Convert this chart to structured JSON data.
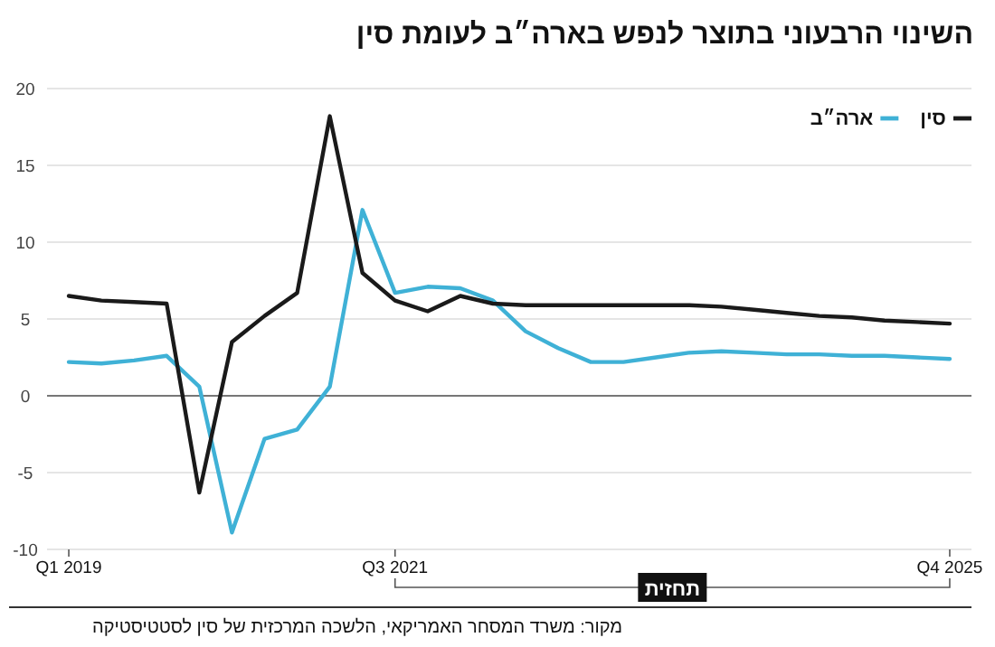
{
  "chart_data": {
    "type": "line",
    "title": "השינוי הרבעוני בתוצר לנפש בארה״ב לעומת סין",
    "x": [
      "2019-01",
      "2019-04",
      "2019-07",
      "2019-10",
      "2020-01",
      "2020-04",
      "2020-07",
      "2020-10",
      "2021-01",
      "2021-04",
      "2021-07",
      "2021-10",
      "2022-01",
      "2022-04",
      "2022-07",
      "2022-10",
      "2023-01",
      "2023-04",
      "2023-07",
      "2023-10",
      "2024-01",
      "2024-04",
      "2024-07",
      "2024-10",
      "2025-01",
      "2025-04",
      "2025-07",
      "2025-10"
    ],
    "series": [
      {
        "name": "סין",
        "color": "#1a1a1a",
        "values": [
          6.5,
          6.2,
          6.1,
          6.0,
          -6.3,
          3.5,
          5.2,
          6.7,
          18.2,
          8.0,
          6.2,
          5.5,
          6.5,
          6.0,
          5.9,
          5.9,
          5.9,
          5.9,
          5.9,
          5.9,
          5.8,
          5.6,
          5.4,
          5.2,
          5.1,
          4.9,
          4.8,
          4.7
        ]
      },
      {
        "name": "ארה״ב",
        "color": "#3fb1d6",
        "values": [
          2.2,
          2.1,
          2.3,
          2.6,
          0.6,
          -8.9,
          -2.8,
          -2.2,
          0.6,
          12.1,
          6.7,
          7.1,
          7.0,
          6.2,
          4.2,
          3.1,
          2.2,
          2.2,
          2.5,
          2.8,
          2.9,
          2.8,
          2.7,
          2.7,
          2.6,
          2.6,
          2.5,
          2.4
        ]
      }
    ],
    "xlim": [
      "2018-11",
      "2025-12"
    ],
    "xticks": [
      {
        "value": "2019-01",
        "label": "Q1 2019"
      },
      {
        "value": "2021-07",
        "label": "Q3 2021"
      },
      {
        "value": "2025-10",
        "label": "Q4 2025"
      }
    ],
    "ylim": [
      -10,
      20
    ],
    "yticks": [
      -10,
      -5,
      0,
      5,
      10,
      15,
      20
    ],
    "grid": "y",
    "legend": "top right",
    "marker": "none",
    "line_style": "solid",
    "annotations": [
      "תחזית",
      "מקור: משרד המסחר האמריקאי, הלשכה המרכזית של סין לסטטיסטיקה"
    ]
  }
}
